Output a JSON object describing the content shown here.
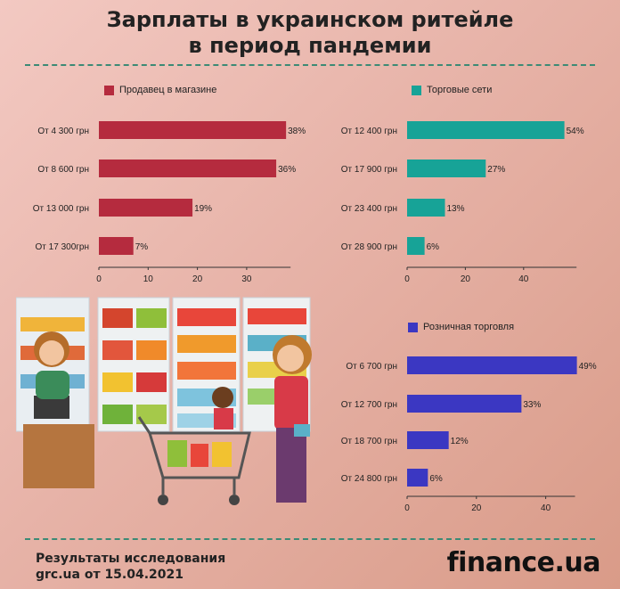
{
  "title_line1": "Зарплаты в украинском ритейле",
  "title_line2": "в период пандемии",
  "footer_line1": "Результаты исследования",
  "footer_line2": "grc.ua от 15.04.2021",
  "logo": "finance.ua",
  "colors": {
    "seller": "#b52b3e",
    "chains": "#17a397",
    "retail": "#3b37c2"
  },
  "chart_data": [
    {
      "type": "bar",
      "orientation": "horizontal",
      "series_name": "Продавец в магазине",
      "categories": [
        "От 4 300 грн",
        "От 8 600 грн",
        "От 13 000 грн",
        "От 17 300грн"
      ],
      "values": [
        38,
        36,
        19,
        7
      ],
      "value_labels": [
        "38%",
        "36%",
        "19%",
        "7%"
      ],
      "xticks": [
        "0",
        "10",
        "20",
        "30"
      ],
      "xlim": [
        0,
        40
      ]
    },
    {
      "type": "bar",
      "orientation": "horizontal",
      "series_name": "Торговые сети",
      "categories": [
        "От 12 400 грн",
        "От 17 900 грн",
        "От 23 400 грн",
        "От 28 900 грн"
      ],
      "values": [
        54,
        27,
        13,
        6
      ],
      "value_labels": [
        "54%",
        "27%",
        "13%",
        "6%"
      ],
      "xticks": [
        "0",
        "20",
        "40"
      ],
      "xlim": [
        0,
        60
      ]
    },
    {
      "type": "bar",
      "orientation": "horizontal",
      "series_name": "Розничная торговля",
      "categories": [
        "От 6 700 грн",
        "От 12 700 грн",
        "От 18 700 грн",
        "От 24 800 грн"
      ],
      "values": [
        49,
        33,
        12,
        6
      ],
      "value_labels": [
        "49%",
        "33%",
        "12%",
        "6%"
      ],
      "xticks": [
        "0",
        "20",
        "40"
      ],
      "xlim": [
        0,
        50
      ]
    }
  ]
}
